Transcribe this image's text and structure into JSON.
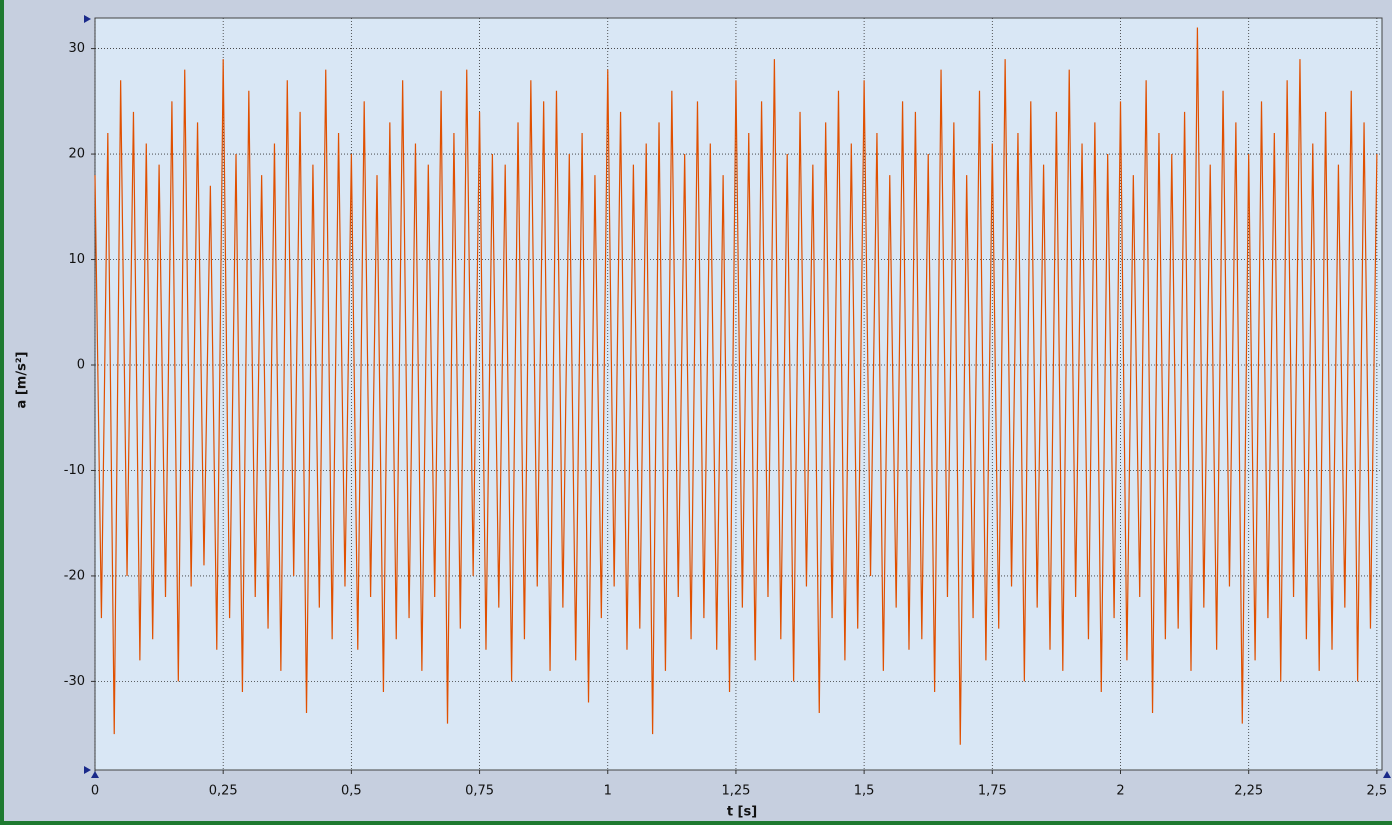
{
  "chart_data": {
    "type": "line",
    "x_label": "t [s]",
    "y_label": "a [m/s²]",
    "color": "#e05000",
    "grid": true,
    "xlim": [
      0,
      2.51
    ],
    "ylim": [
      -38.4,
      32.9
    ],
    "xticks": [
      0,
      {
        "value": 0.25,
        "label": "0,25"
      },
      {
        "value": 0.5,
        "label": "0,5"
      },
      {
        "value": 0.75,
        "label": "0,75"
      },
      1,
      {
        "value": 1.25,
        "label": "1,25"
      },
      {
        "value": 1.5,
        "label": "1,5"
      },
      {
        "value": 1.75,
        "label": "1,75"
      },
      2,
      {
        "value": 2.25,
        "label": "2,25"
      },
      {
        "value": 2.5,
        "label": "2,5"
      }
    ],
    "yticks": [
      -30,
      -20,
      -10,
      0,
      10,
      20,
      30
    ],
    "x": [
      0,
      0.0125,
      0.025,
      0.0375,
      0.05,
      0.0625,
      0.075,
      0.0875,
      0.1,
      0.1125,
      0.125,
      0.1375,
      0.15,
      0.1625,
      0.175,
      0.1875,
      0.2,
      0.2125,
      0.225,
      0.2375,
      0.25,
      0.2625,
      0.275,
      0.2875,
      0.3,
      0.3125,
      0.325,
      0.3375,
      0.35,
      0.3625,
      0.375,
      0.3875,
      0.4,
      0.4125,
      0.425,
      0.4375,
      0.45,
      0.4625,
      0.475,
      0.4875,
      0.5,
      0.5125,
      0.525,
      0.5375,
      0.55,
      0.5625,
      0.575,
      0.5875,
      0.6,
      0.6125,
      0.625,
      0.6375,
      0.65,
      0.6625,
      0.675,
      0.6875,
      0.7,
      0.7125,
      0.725,
      0.7375,
      0.75,
      0.7625,
      0.775,
      0.7875,
      0.8,
      0.8125,
      0.825,
      0.8375,
      0.85,
      0.8625,
      0.875,
      0.8875,
      0.9,
      0.9125,
      0.925,
      0.9375,
      0.95,
      0.9625,
      0.975,
      0.9875,
      1,
      1.0125,
      1.025,
      1.0375,
      1.05,
      1.0625,
      1.075,
      1.0875,
      1.1,
      1.1125,
      1.125,
      1.1375,
      1.15,
      1.1625,
      1.175,
      1.1875,
      1.2,
      1.2125,
      1.225,
      1.2375,
      1.25,
      1.2625,
      1.275,
      1.2875,
      1.3,
      1.3125,
      1.325,
      1.3375,
      1.35,
      1.3625,
      1.375,
      1.3875,
      1.4,
      1.4125,
      1.425,
      1.4375,
      1.45,
      1.4625,
      1.475,
      1.4875,
      1.5,
      1.5125,
      1.525,
      1.5375,
      1.55,
      1.5625,
      1.575,
      1.5875,
      1.6,
      1.6125,
      1.625,
      1.6375,
      1.65,
      1.6625,
      1.675,
      1.6875,
      1.7,
      1.7125,
      1.725,
      1.7375,
      1.75,
      1.7625,
      1.775,
      1.7875,
      1.8,
      1.8125,
      1.825,
      1.8375,
      1.85,
      1.8625,
      1.875,
      1.8875,
      1.9,
      1.9125,
      1.925,
      1.9375,
      1.95,
      1.9625,
      1.975,
      1.9875,
      2,
      2.0125,
      2.025,
      2.0375,
      2.05,
      2.0625,
      2.075,
      2.0875,
      2.1,
      2.1125,
      2.125,
      2.1375,
      2.15,
      2.1625,
      2.175,
      2.1875,
      2.2,
      2.2125,
      2.225,
      2.2375,
      2.25,
      2.2625,
      2.275,
      2.2875,
      2.3,
      2.3125,
      2.325,
      2.3375,
      2.35,
      2.3625,
      2.375,
      2.3875,
      2.4,
      2.4125,
      2.425,
      2.4375,
      2.45,
      2.4625,
      2.475,
      2.4875,
      2.5
    ],
    "values": [
      18,
      -24,
      22,
      -35,
      27,
      -20,
      24,
      -28,
      21,
      -26,
      19,
      -22,
      25,
      -30,
      28,
      -21,
      23,
      -19,
      17,
      -27,
      29,
      -24,
      20,
      -31,
      26,
      -22,
      18,
      -25,
      21,
      -29,
      27,
      -20,
      24,
      -33,
      19,
      -23,
      28,
      -26,
      22,
      -21,
      20,
      -27,
      25,
      -22,
      18,
      -31,
      23,
      -26,
      27,
      -24,
      21,
      -29,
      19,
      -22,
      26,
      -34,
      22,
      -25,
      28,
      -20,
      24,
      -27,
      20,
      -23,
      19,
      -30,
      23,
      -26,
      27,
      -21,
      25,
      -29,
      26,
      -23,
      20,
      -28,
      22,
      -32,
      18,
      -24,
      28,
      -21,
      24,
      -27,
      19,
      -25,
      21,
      -35,
      23,
      -29,
      26,
      -22,
      20,
      -26,
      25,
      -24,
      21,
      -27,
      18,
      -31,
      27,
      -23,
      22,
      -28,
      25,
      -22,
      29,
      -26,
      20,
      -30,
      24,
      -21,
      19,
      -33,
      23,
      -24,
      26,
      -28,
      21,
      -25,
      27,
      -20,
      22,
      -29,
      18,
      -23,
      25,
      -27,
      24,
      -26,
      20,
      -31,
      28,
      -22,
      23,
      -36,
      18,
      -24,
      26,
      -28,
      21,
      -25,
      29,
      -21,
      22,
      -30,
      25,
      -23,
      19,
      -27,
      24,
      -29,
      28,
      -22,
      21,
      -26,
      23,
      -31,
      20,
      -24,
      25,
      -28,
      18,
      -22,
      27,
      -33,
      22,
      -26,
      20,
      -25,
      24,
      -29,
      32,
      -23,
      19,
      -27,
      26,
      -21,
      23,
      -34,
      20,
      -28,
      25,
      -24,
      22,
      -30,
      27,
      -22,
      29,
      -26,
      21,
      -29,
      24,
      -27,
      19,
      -23,
      26,
      -30,
      23,
      -25,
      20
    ]
  }
}
